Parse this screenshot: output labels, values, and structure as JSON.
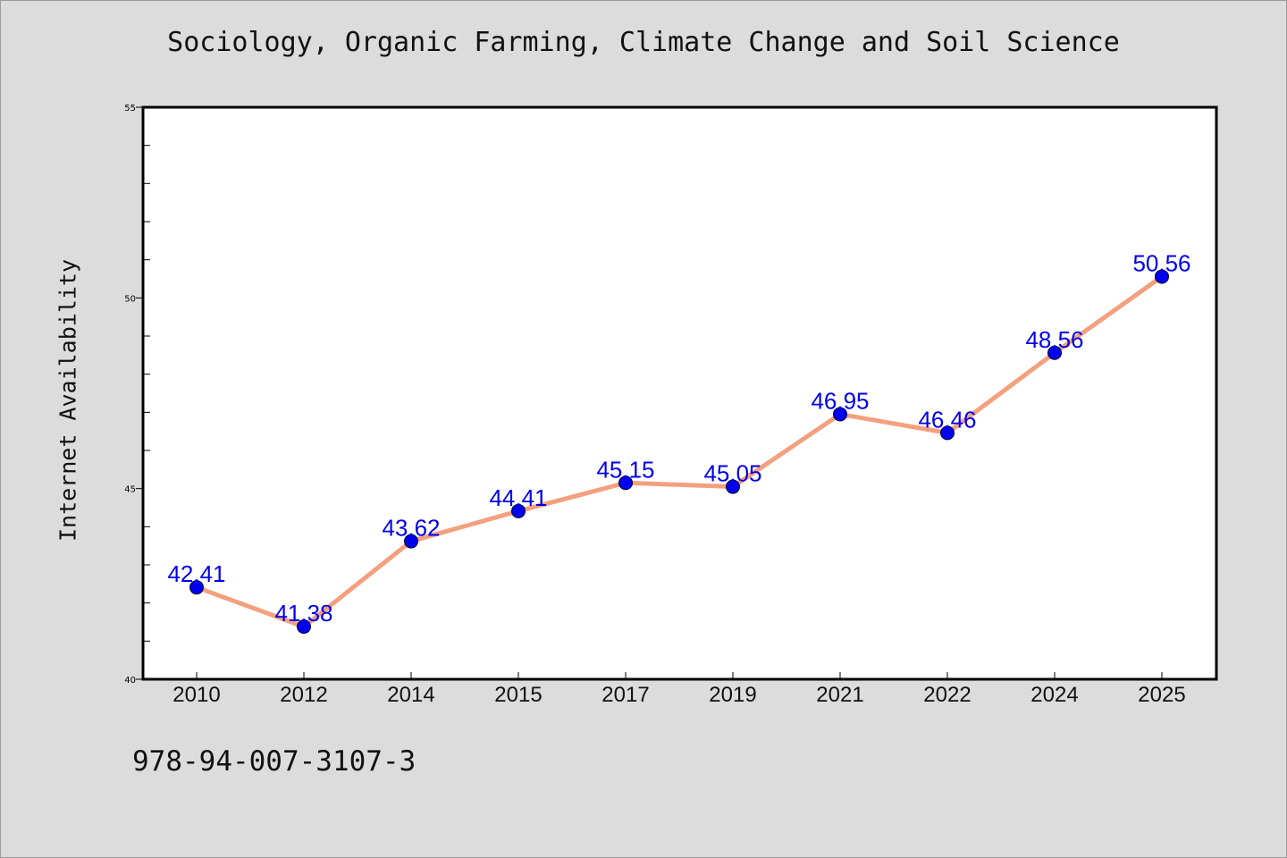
{
  "chart_data": {
    "type": "line",
    "title": "Sociology, Organic Farming, Climate Change and Soil Science",
    "xlabel": "",
    "ylabel": "Internet Availability",
    "categories": [
      "2010",
      "2012",
      "2014",
      "2015",
      "2017",
      "2019",
      "2021",
      "2022",
      "2024",
      "2025"
    ],
    "values": [
      42.41,
      41.38,
      43.62,
      44.41,
      45.15,
      45.05,
      46.95,
      46.46,
      48.56,
      50.56
    ],
    "data_labels": [
      "42.41",
      "41.38",
      "43.62",
      "44.41",
      "45.15",
      "45.05",
      "46.95",
      "46.46",
      "48.56",
      "50.56"
    ],
    "ylim": [
      40,
      55
    ],
    "yticks": [
      "40",
      "45",
      "50",
      "55"
    ],
    "grid": false,
    "colors": {
      "line": "#f4a07e",
      "marker": "#0000ee",
      "label": "#0000ee",
      "plot_background": "#ffffff",
      "page_background": "#dcdcdc"
    }
  },
  "footer": {
    "identifier": "978-94-007-3107-3"
  }
}
